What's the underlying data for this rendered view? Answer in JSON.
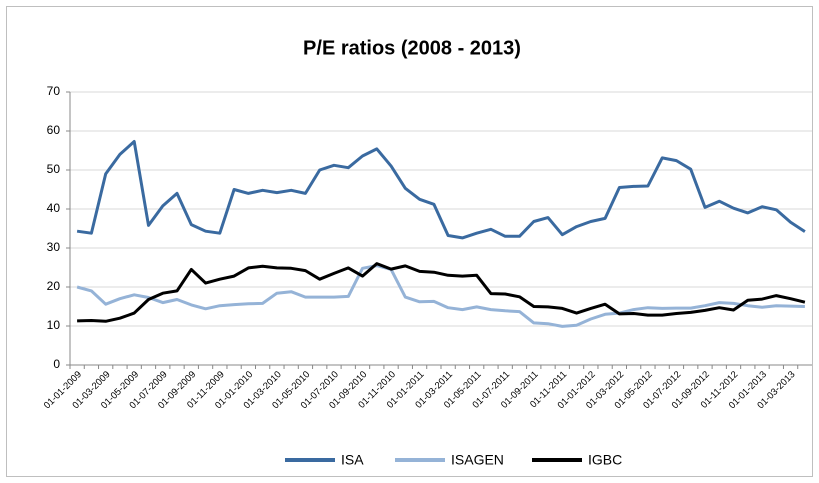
{
  "chart_data": {
    "type": "line",
    "title": "P/E ratios (2008 - 2013)",
    "categories": [
      "01-01-2009",
      null,
      "01-03-2009",
      null,
      "01-05-2009",
      null,
      "01-07-2009",
      null,
      "01-09-2009",
      null,
      "01-11-2009",
      null,
      "01-01-2010",
      null,
      "01-03-2010",
      null,
      "01-05-2010",
      null,
      "01-07-2010",
      null,
      "01-09-2010",
      null,
      "01-11-2010",
      null,
      "01-01-2011",
      null,
      "01-03-2011",
      null,
      "01-05-2011",
      null,
      "01-07-2011",
      null,
      "01-09-2011",
      null,
      "01-11-2011",
      null,
      "01-01-2012",
      null,
      "01-03-2012",
      null,
      "01-05-2012",
      null,
      "01-07-2012",
      null,
      "01-09-2012",
      null,
      "01-11-2012",
      null,
      "01-01-2013",
      null,
      "01-03-2013",
      null
    ],
    "series": [
      {
        "name": "ISA",
        "color": "#3a6aa0",
        "values": [
          34.3,
          33.8,
          49,
          54,
          57.3,
          35.8,
          40.8,
          44,
          36,
          34.3,
          33.8,
          45,
          44,
          44.8,
          44.2,
          44.8,
          44,
          50,
          51.2,
          50.6,
          53.6,
          55.4,
          51,
          45.3,
          42.5,
          41.2,
          33.2,
          32.6,
          33.8,
          34.8,
          33,
          33,
          36.8,
          37.8,
          33.4,
          35.5,
          36.8,
          37.6,
          45.5,
          45.8,
          45.9,
          53.1,
          52.4,
          50.2,
          40.4,
          42,
          40.2,
          39,
          40.6,
          39.8,
          36.6,
          34.2
        ]
      },
      {
        "name": "ISAGEN",
        "color": "#95b3d7",
        "values": [
          20,
          19,
          15.6,
          17,
          18,
          17.3,
          16,
          16.8,
          15.4,
          14.4,
          15.2,
          15.5,
          15.7,
          15.8,
          18.4,
          18.8,
          17.4,
          17.4,
          17.4,
          17.6,
          24.8,
          25.5,
          24.5,
          17.4,
          16.2,
          16.3,
          14.7,
          14.2,
          14.9,
          14.2,
          13.9,
          13.7,
          10.8,
          10.6,
          9.9,
          10.2,
          11.8,
          13,
          13.3,
          14.2,
          14.7,
          14.5,
          14.6,
          14.6,
          15.2,
          16,
          15.8,
          15.2,
          14.8,
          15.2,
          15.1,
          15
        ]
      },
      {
        "name": "IGBC",
        "color": "#000000",
        "values": [
          11.3,
          11.4,
          11.2,
          12,
          13.3,
          16.8,
          18.4,
          19,
          24.5,
          21,
          22,
          22.8,
          24.9,
          25.3,
          24.9,
          24.8,
          24.2,
          22,
          23.5,
          24.9,
          22.8,
          26,
          24.6,
          25.4,
          24,
          23.8,
          23,
          22.8,
          23,
          18.3,
          18.2,
          17.5,
          15,
          14.9,
          14.5,
          13.3,
          14.5,
          15.6,
          13.1,
          13.2,
          12.8,
          12.8,
          13.2,
          13.5,
          14,
          14.7,
          14.1,
          16.6,
          16.9,
          17.8,
          17,
          16.1
        ]
      }
    ],
    "ylim": [
      0,
      70
    ],
    "yticks": [
      0,
      10,
      20,
      30,
      40,
      50,
      60,
      70
    ],
    "grid": true,
    "legend": "bottom"
  }
}
